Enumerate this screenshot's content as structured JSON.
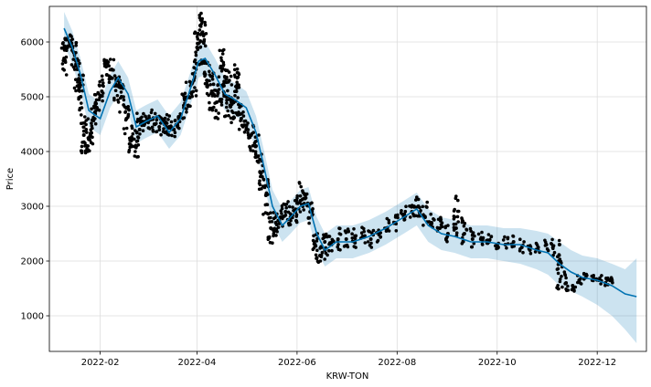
{
  "chart_data": {
    "type": "line",
    "xlabel": "KRW-TON",
    "ylabel": "Price",
    "xlim": [
      "2022-01-01",
      "2022-12-31"
    ],
    "ylim": [
      350,
      6650
    ],
    "grid": true,
    "x_ticks": [
      {
        "date": "2022-02-01",
        "label": "2022-02"
      },
      {
        "date": "2022-04-01",
        "label": "2022-04"
      },
      {
        "date": "2022-06-01",
        "label": "2022-06"
      },
      {
        "date": "2022-08-01",
        "label": "2022-08"
      },
      {
        "date": "2022-10-01",
        "label": "2022-10"
      },
      {
        "date": "2022-12-01",
        "label": "2022-12"
      }
    ],
    "y_ticks": [
      1000,
      2000,
      3000,
      4000,
      5000,
      6000
    ],
    "colors": {
      "forecast_line": "#0072B2",
      "uncertainty_band": "#0072B2",
      "observed_points": "#000000",
      "grid": "#dddddd"
    },
    "forecast": {
      "x": [
        "2022-01-10",
        "2022-01-15",
        "2022-01-20",
        "2022-01-25",
        "2022-02-01",
        "2022-02-07",
        "2022-02-12",
        "2022-02-18",
        "2022-02-23",
        "2022-03-01",
        "2022-03-08",
        "2022-03-15",
        "2022-03-22",
        "2022-03-28",
        "2022-04-02",
        "2022-04-06",
        "2022-04-12",
        "2022-04-18",
        "2022-04-24",
        "2022-05-01",
        "2022-05-07",
        "2022-05-12",
        "2022-05-17",
        "2022-05-23",
        "2022-05-28",
        "2022-06-03",
        "2022-06-08",
        "2022-06-13",
        "2022-06-18",
        "2022-06-25",
        "2022-07-05",
        "2022-07-15",
        "2022-07-25",
        "2022-08-05",
        "2022-08-13",
        "2022-08-20",
        "2022-08-28",
        "2022-09-05",
        "2022-09-15",
        "2022-09-25",
        "2022-10-05",
        "2022-10-15",
        "2022-10-25",
        "2022-11-01",
        "2022-11-08",
        "2022-11-15",
        "2022-11-22",
        "2022-12-01",
        "2022-12-10",
        "2022-12-18",
        "2022-12-25"
      ],
      "yhat": [
        6250,
        5900,
        5400,
        4750,
        4600,
        5100,
        5350,
        5050,
        4450,
        4550,
        4650,
        4350,
        4600,
        5150,
        5650,
        5700,
        5400,
        5050,
        4950,
        4800,
        4350,
        3700,
        3000,
        2650,
        2800,
        3000,
        3050,
        2500,
        2200,
        2350,
        2350,
        2450,
        2600,
        2800,
        2950,
        2650,
        2500,
        2450,
        2350,
        2350,
        2300,
        2300,
        2200,
        2150,
        1950,
        1800,
        1700,
        1650,
        1550,
        1400,
        1350
      ],
      "yhat_lower": [
        5950,
        5600,
        5100,
        4450,
        4300,
        4800,
        5050,
        4750,
        4150,
        4250,
        4350,
        4050,
        4300,
        4850,
        5350,
        5400,
        5100,
        4750,
        4650,
        4500,
        4050,
        3400,
        2700,
        2350,
        2500,
        2700,
        2750,
        2200,
        1900,
        2050,
        2050,
        2150,
        2300,
        2500,
        2650,
        2350,
        2200,
        2150,
        2050,
        2050,
        2000,
        1950,
        1850,
        1750,
        1550,
        1450,
        1350,
        1200,
        1000,
        750,
        500
      ],
      "yhat_upper": [
        6550,
        6200,
        5700,
        5050,
        4900,
        5400,
        5650,
        5350,
        4750,
        4850,
        4950,
        4650,
        4900,
        5450,
        5950,
        6000,
        5700,
        5350,
        5250,
        5100,
        4650,
        4000,
        3300,
        2950,
        3100,
        3300,
        3350,
        2800,
        2500,
        2650,
        2650,
        2750,
        2900,
        3100,
        3250,
        2950,
        2800,
        2750,
        2650,
        2650,
        2600,
        2600,
        2550,
        2500,
        2350,
        2200,
        2100,
        2050,
        1950,
        1850,
        2050
      ]
    },
    "observed": {
      "x": [
        "2022-01-10",
        "2022-01-12",
        "2022-01-14",
        "2022-01-16",
        "2022-01-18",
        "2022-01-20",
        "2022-01-22",
        "2022-01-24",
        "2022-01-26",
        "2022-01-28",
        "2022-01-30",
        "2022-02-02",
        "2022-02-05",
        "2022-02-08",
        "2022-02-11",
        "2022-02-14",
        "2022-02-17",
        "2022-02-20",
        "2022-02-23",
        "2022-02-25",
        "2022-02-28",
        "2022-03-03",
        "2022-03-06",
        "2022-03-09",
        "2022-03-12",
        "2022-03-15",
        "2022-03-18",
        "2022-03-21",
        "2022-03-24",
        "2022-03-27",
        "2022-03-30",
        "2022-04-01",
        "2022-04-03",
        "2022-04-05",
        "2022-04-07",
        "2022-04-10",
        "2022-04-13",
        "2022-04-16",
        "2022-04-19",
        "2022-04-22",
        "2022-04-25",
        "2022-04-28",
        "2022-05-01",
        "2022-05-04",
        "2022-05-07",
        "2022-05-10",
        "2022-05-13",
        "2022-05-16",
        "2022-05-19",
        "2022-05-22",
        "2022-05-25",
        "2022-05-28",
        "2022-05-31",
        "2022-06-03",
        "2022-06-06",
        "2022-06-09",
        "2022-06-12",
        "2022-06-15",
        "2022-06-18",
        "2022-06-22",
        "2022-06-26",
        "2022-07-01",
        "2022-07-06",
        "2022-07-11",
        "2022-07-16",
        "2022-07-21",
        "2022-07-26",
        "2022-07-31",
        "2022-08-05",
        "2022-08-10",
        "2022-08-14",
        "2022-08-18",
        "2022-08-22",
        "2022-08-27",
        "2022-09-01",
        "2022-09-06",
        "2022-09-11",
        "2022-09-16",
        "2022-09-21",
        "2022-09-26",
        "2022-10-01",
        "2022-10-06",
        "2022-10-11",
        "2022-10-16",
        "2022-10-21",
        "2022-10-26",
        "2022-10-31",
        "2022-11-04",
        "2022-11-08",
        "2022-11-12",
        "2022-11-16",
        "2022-11-20",
        "2022-11-24",
        "2022-11-28",
        "2022-12-02",
        "2022-12-06",
        "2022-12-10"
      ],
      "y": [
        5700,
        5900,
        6000,
        5800,
        5500,
        5000,
        4300,
        4100,
        4300,
        4600,
        4800,
        5100,
        5400,
        5500,
        5200,
        5000,
        4600,
        4200,
        4100,
        4400,
        4500,
        4600,
        4500,
        4450,
        4500,
        4450,
        4400,
        4600,
        4800,
        5000,
        5300,
        5900,
        6300,
        6000,
        5300,
        5100,
        4900,
        5200,
        5000,
        4900,
        5100,
        4600,
        4400,
        4300,
        4100,
        3600,
        3200,
        2600,
        2700,
        2800,
        2900,
        2800,
        2900,
        3100,
        3200,
        2900,
        2300,
        2100,
        2200,
        2300,
        2400,
        2400,
        2350,
        2450,
        2400,
        2500,
        2600,
        2700,
        2800,
        2900,
        3000,
        2800,
        2700,
        2600,
        2500,
        2600,
        2500,
        2400,
        2400,
        2350,
        2300,
        2300,
        2350,
        2250,
        2200,
        2250,
        2300,
        2250,
        2300,
        1600,
        1550,
        1650,
        1700,
        1650,
        1650,
        1600,
        1650
      ],
      "lo": [
        5400,
        5700,
        5800,
        5500,
        5100,
        4600,
        3950,
        3950,
        4000,
        4300,
        4600,
        4900,
        5200,
        5300,
        4900,
        4700,
        4300,
        3900,
        3850,
        4200,
        4300,
        4400,
        4350,
        4300,
        4300,
        4250,
        4250,
        4400,
        4600,
        4800,
        5000,
        5500,
        5900,
        5600,
        5000,
        4700,
        4600,
        4850,
        4600,
        4500,
        4600,
        4400,
        4200,
        4000,
        3800,
        3300,
        2800,
        2300,
        2450,
        2600,
        2700,
        2600,
        2700,
        2900,
        2900,
        2600,
        1950,
        1950,
        2000,
        2150,
        2200,
        2250,
        2200,
        2300,
        2250,
        2350,
        2450,
        2550,
        2650,
        2750,
        2750,
        2650,
        2550,
        2450,
        2350,
        2450,
        2300,
        2250,
        2250,
        2200,
        2200,
        2200,
        2250,
        2150,
        2100,
        2150,
        2150,
        2100,
        1450,
        1450,
        1450,
        1550,
        1600,
        1550,
        1550,
        1550,
        1600
      ],
      "hi": [
        6100,
        6100,
        6150,
        6050,
        5900,
        5400,
        4700,
        4350,
        4600,
        4900,
        5100,
        5400,
        5700,
        5700,
        5500,
        5300,
        4900,
        4500,
        4400,
        4700,
        4700,
        4800,
        4700,
        4650,
        4700,
        4650,
        4600,
        4800,
        5100,
        5300,
        5600,
        6200,
        6550,
        6400,
        5700,
        5500,
        5300,
        5900,
        5500,
        5400,
        5600,
        4900,
        4600,
        4500,
        4300,
        4000,
        3500,
        2900,
        3000,
        3050,
        3100,
        3000,
        3200,
        3450,
        3300,
        3100,
        2600,
        2300,
        2500,
        2500,
        2600,
        2600,
        2600,
        2650,
        2600,
        2700,
        2800,
        2850,
        3000,
        3100,
        3200,
        3100,
        2900,
        2800,
        2700,
        3200,
        2800,
        2600,
        2550,
        2500,
        2450,
        2450,
        2500,
        2400,
        2350,
        2350,
        2400,
        2400,
        2400,
        1800,
        1700,
        1750,
        1800,
        1750,
        1750,
        1700,
        1700
      ]
    }
  }
}
